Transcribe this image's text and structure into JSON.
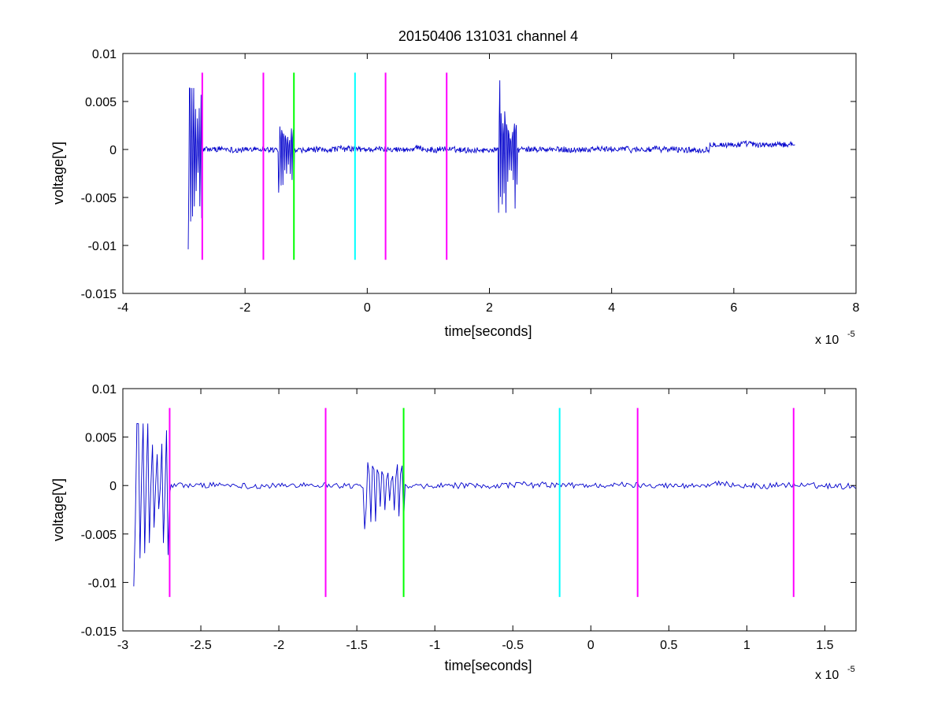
{
  "chart_data": [
    {
      "type": "line",
      "title": "20150406 131031 channel 4",
      "xlabel": "time[seconds]",
      "ylabel": "voltage[V]",
      "xlim": [
        -4,
        8
      ],
      "ylim": [
        -0.015,
        0.01
      ],
      "x_scale_base": "x 10",
      "x_scale_exponent": "-5",
      "xticks": [
        -4,
        -2,
        0,
        2,
        4,
        6,
        8
      ],
      "xtick_labels": [
        "-4",
        "-2",
        "0",
        "2",
        "4",
        "6",
        "8"
      ],
      "yticks": [
        -0.015,
        -0.01,
        -0.005,
        0,
        0.005,
        0.01
      ],
      "ytick_labels": [
        "-0.015",
        "-0.01",
        "-0.005",
        "0",
        "0.005",
        "0.01"
      ],
      "grid": false,
      "series": [
        {
          "color": "#0000cc",
          "x_range": [
            -2.93,
            7.0
          ],
          "bursts": [
            {
              "x": [
                -2.93,
                -2.7
              ],
              "y": [
                -0.0104,
                0.0064
              ]
            },
            {
              "x": [
                -1.45,
                -1.2
              ],
              "y": [
                -0.0045,
                0.0024
              ]
            },
            {
              "x": [
                2.15,
                2.45
              ],
              "y": [
                -0.0066,
                0.0072
              ]
            }
          ]
        }
      ],
      "markers": [
        {
          "x": -2.7,
          "color": "#ff00ff",
          "ylim": [
            -0.0115,
            0.008
          ]
        },
        {
          "x": -1.7,
          "color": "#ff00ff",
          "ylim": [
            -0.0115,
            0.008
          ]
        },
        {
          "x": -1.2,
          "color": "#00ff00",
          "ylim": [
            -0.0115,
            0.008
          ]
        },
        {
          "x": -0.2,
          "color": "#00ffff",
          "ylim": [
            -0.0115,
            0.008
          ]
        },
        {
          "x": 0.3,
          "color": "#ff00ff",
          "ylim": [
            -0.0115,
            0.008
          ]
        },
        {
          "x": 1.3,
          "color": "#ff00ff",
          "ylim": [
            -0.0115,
            0.008
          ]
        }
      ]
    },
    {
      "type": "line",
      "title": "",
      "xlabel": "time[seconds]",
      "ylabel": "voltage[V]",
      "xlim": [
        -3.0,
        1.7
      ],
      "ylim": [
        -0.015,
        0.01
      ],
      "x_scale_base": "x 10",
      "x_scale_exponent": "-5",
      "xticks": [
        -3,
        -2.5,
        -2,
        -1.5,
        -1,
        -0.5,
        0,
        0.5,
        1,
        1.5
      ],
      "xtick_labels": [
        "-3",
        "-2.5",
        "-2",
        "-1.5",
        "-1",
        "-0.5",
        "0",
        "0.5",
        "1",
        "1.5"
      ],
      "yticks": [
        -0.015,
        -0.01,
        -0.005,
        0,
        0.005,
        0.01
      ],
      "ytick_labels": [
        "-0.015",
        "-0.01",
        "-0.005",
        "0",
        "0.005",
        "0.01"
      ],
      "grid": false,
      "series": [
        {
          "color": "#0000cc",
          "x_range": [
            -2.93,
            1.7
          ],
          "bursts": [
            {
              "x": [
                -2.93,
                -2.7
              ],
              "y": [
                -0.0104,
                0.0064
              ]
            },
            {
              "x": [
                -1.45,
                -1.2
              ],
              "y": [
                -0.0045,
                0.0024
              ]
            }
          ]
        }
      ],
      "markers": [
        {
          "x": -2.7,
          "color": "#ff00ff",
          "ylim": [
            -0.0115,
            0.008
          ]
        },
        {
          "x": -1.7,
          "color": "#ff00ff",
          "ylim": [
            -0.0115,
            0.008
          ]
        },
        {
          "x": -1.2,
          "color": "#00ff00",
          "ylim": [
            -0.0115,
            0.008
          ]
        },
        {
          "x": -0.2,
          "color": "#00ffff",
          "ylim": [
            -0.0115,
            0.008
          ]
        },
        {
          "x": 0.3,
          "color": "#ff00ff",
          "ylim": [
            -0.0115,
            0.008
          ]
        },
        {
          "x": 1.3,
          "color": "#ff00ff",
          "ylim": [
            -0.0115,
            0.008
          ]
        }
      ]
    }
  ]
}
